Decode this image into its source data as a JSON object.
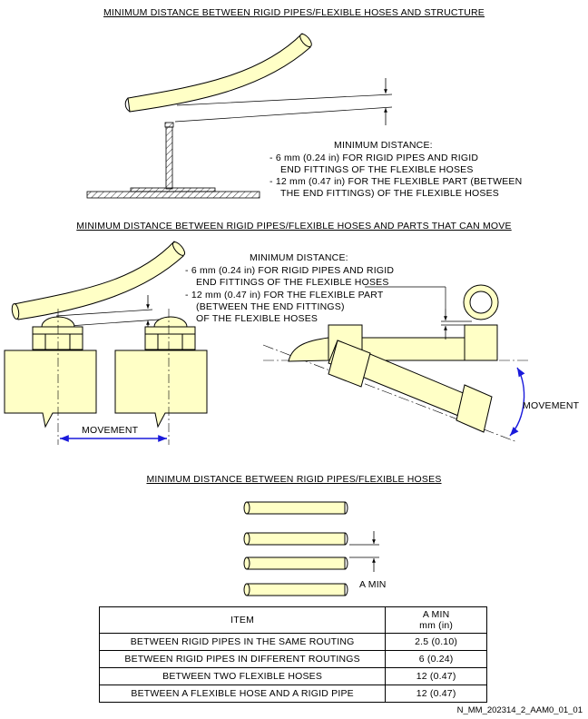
{
  "section1": {
    "title": "MINIMUM DISTANCE BETWEEN RIGID PIPES/FLEXIBLE HOSES AND STRUCTURE",
    "label_heading": "MINIMUM DISTANCE:",
    "lines": [
      "-  6 mm (0.24 in) FOR RIGID PIPES AND RIGID",
      "END FITTINGS OF THE FLEXIBLE HOSES",
      "-  12 mm (0.47 in) FOR THE FLEXIBLE PART (BETWEEN",
      "THE END FITTINGS) OF THE FLEXIBLE HOSES"
    ]
  },
  "section2": {
    "title": "MINIMUM DISTANCE BETWEEN RIGID PIPES/FLEXIBLE HOSES AND PARTS THAT CAN MOVE",
    "label_heading": "MINIMUM DISTANCE:",
    "lines": [
      "-  6 mm (0.24 in) FOR RIGID PIPES AND RIGID",
      "END FITTINGS OF THE FLEXIBLE HOSES",
      "-  12 mm (0.47 in) FOR THE FLEXIBLE PART",
      "(BETWEEN THE END FITTINGS)",
      "OF THE FLEXIBLE HOSES"
    ],
    "movement_left": "MOVEMENT",
    "movement_right": "MOVEMENT"
  },
  "section3": {
    "title": "MINIMUM DISTANCE BETWEEN RIGID PIPES/FLEXIBLE HOSES",
    "a_min": "A MIN"
  },
  "table": {
    "header_item": "ITEM",
    "header_amin": "A MIN",
    "header_units": "mm (in)",
    "rows": [
      {
        "item": "BETWEEN RIGID PIPES IN THE SAME ROUTING",
        "value": "2.5 (0.10)"
      },
      {
        "item": "BETWEEN RIGID PIPES IN DIFFERENT ROUTINGS",
        "value": "6 (0.24)"
      },
      {
        "item": "BETWEEN TWO FLEXIBLE HOSES",
        "value": "12 (0.47)"
      },
      {
        "item": "BETWEEN A FLEXIBLE HOSE AND A RIGID  PIPE",
        "value": "12 (0.47)"
      }
    ]
  },
  "figure_ref": "N_MM_202314_2_AAM0_01_01",
  "colors": {
    "part_fill": "#ffffc6",
    "arrow_blue": "#1a1adb",
    "line": "#000000"
  }
}
